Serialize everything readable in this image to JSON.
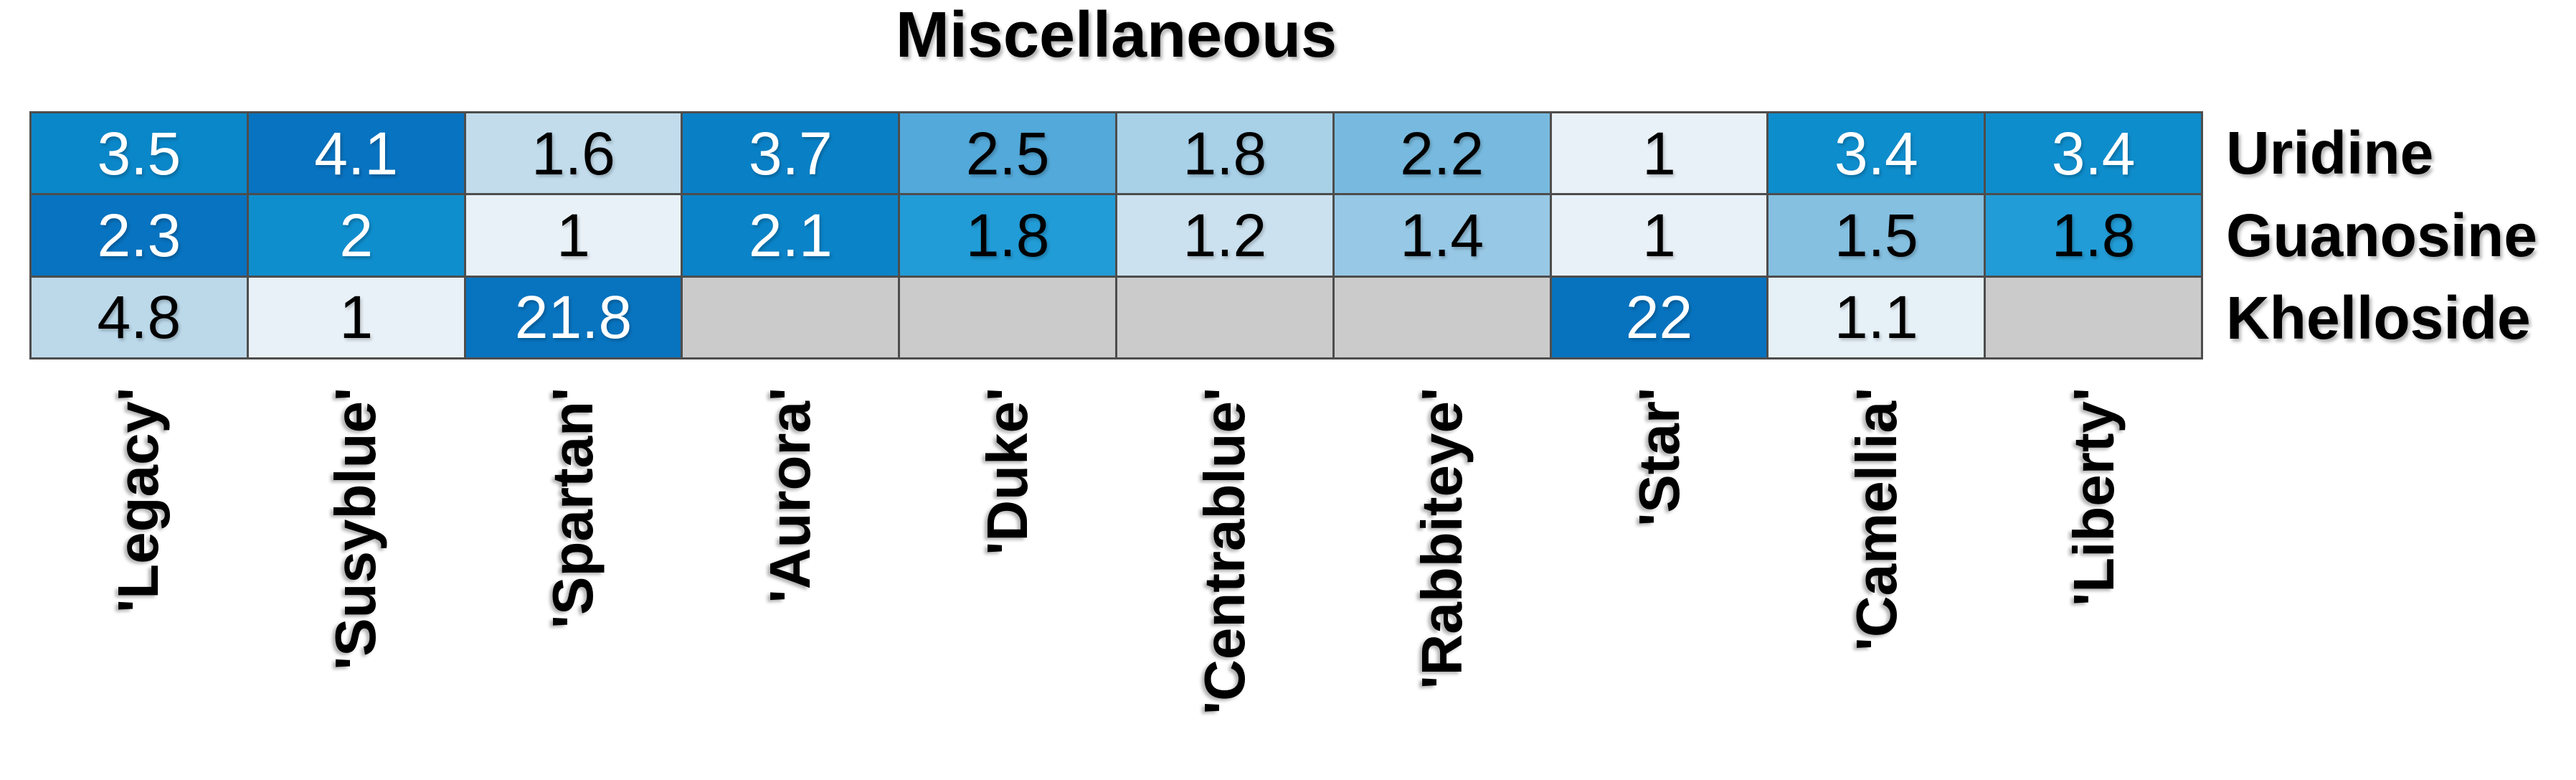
{
  "page": {
    "background_color": "#ffffff"
  },
  "chart_data": {
    "type": "heatmap",
    "title": "Miscellaneous",
    "columns": [
      "'Legacy'",
      "'Susyblue'",
      "'Spartan'",
      "'Aurora'",
      "'Duke'",
      "'Centrablue'",
      "'Rabbiteye'",
      "'Star'",
      "'Camellia'",
      "'Liberty'"
    ],
    "rows": [
      "Uridine",
      "Guanosine",
      "Khelloside"
    ],
    "values": [
      [
        3.5,
        4.1,
        1.6,
        3.7,
        2.5,
        1.8,
        2.2,
        1,
        3.4,
        3.4
      ],
      [
        2.3,
        2,
        1,
        2.1,
        1.8,
        1.2,
        1.4,
        1,
        1.5,
        1.8
      ],
      [
        4.8,
        1,
        21.8,
        null,
        null,
        null,
        null,
        22,
        1.1,
        null
      ]
    ],
    "cell_labels": [
      [
        "3.5",
        "4.1",
        "1.6",
        "3.7",
        "2.5",
        "1.8",
        "2.2",
        "1",
        "3.4",
        "3.4"
      ],
      [
        "2.3",
        "2",
        "1",
        "2.1",
        "1.8",
        "1.2",
        "1.4",
        "1",
        "1.5",
        "1.8"
      ],
      [
        "4.8",
        "1",
        "21.8",
        "",
        "",
        "",
        "",
        "22",
        "1.1",
        ""
      ]
    ],
    "cell_colors": [
      [
        "#0a87c9",
        "#0873c0",
        "#c2dcec",
        "#0980c6",
        "#53a9d9",
        "#a8d1e8",
        "#78badf",
        "#e9f1f8",
        "#0e8dcd",
        "#0e8dcd"
      ],
      [
        "#0873c0",
        "#0f8ece",
        "#e9f1f8",
        "#0a83c8",
        "#229cd7",
        "#cce1ef",
        "#97c8e5",
        "#e9f1f8",
        "#85c0e1",
        "#229cd7"
      ],
      [
        "#bcd9ea",
        "#e9f1f8",
        "#0874c0",
        "#cbcbcb",
        "#cbcbcb",
        "#cbcbcb",
        "#cbcbcb",
        "#0773bf",
        "#e6f0f7",
        "#cbcbcb"
      ]
    ],
    "cell_text_colors": [
      [
        "#ffffff",
        "#ffffff",
        "#000000",
        "#ffffff",
        "#000000",
        "#000000",
        "#000000",
        "#000000",
        "#ffffff",
        "#ffffff"
      ],
      [
        "#ffffff",
        "#ffffff",
        "#000000",
        "#ffffff",
        "#000000",
        "#000000",
        "#000000",
        "#000000",
        "#000000",
        "#000000"
      ],
      [
        "#000000",
        "#000000",
        "#ffffff",
        "#cbcbcb",
        "#cbcbcb",
        "#cbcbcb",
        "#cbcbcb",
        "#ffffff",
        "#000000",
        "#cbcbcb"
      ]
    ],
    "missing_color": "#cbcbcb",
    "grid_color": "#4d4d4d",
    "colormap": {
      "low_color": "#e9f1f8",
      "high_color": "#0070c0",
      "normalization": "per-row"
    },
    "layout_hints": {
      "row_labels_side": "right",
      "column_labels_side": "bottom",
      "column_label_rotation_deg": 90,
      "title_position": "top-center"
    }
  }
}
